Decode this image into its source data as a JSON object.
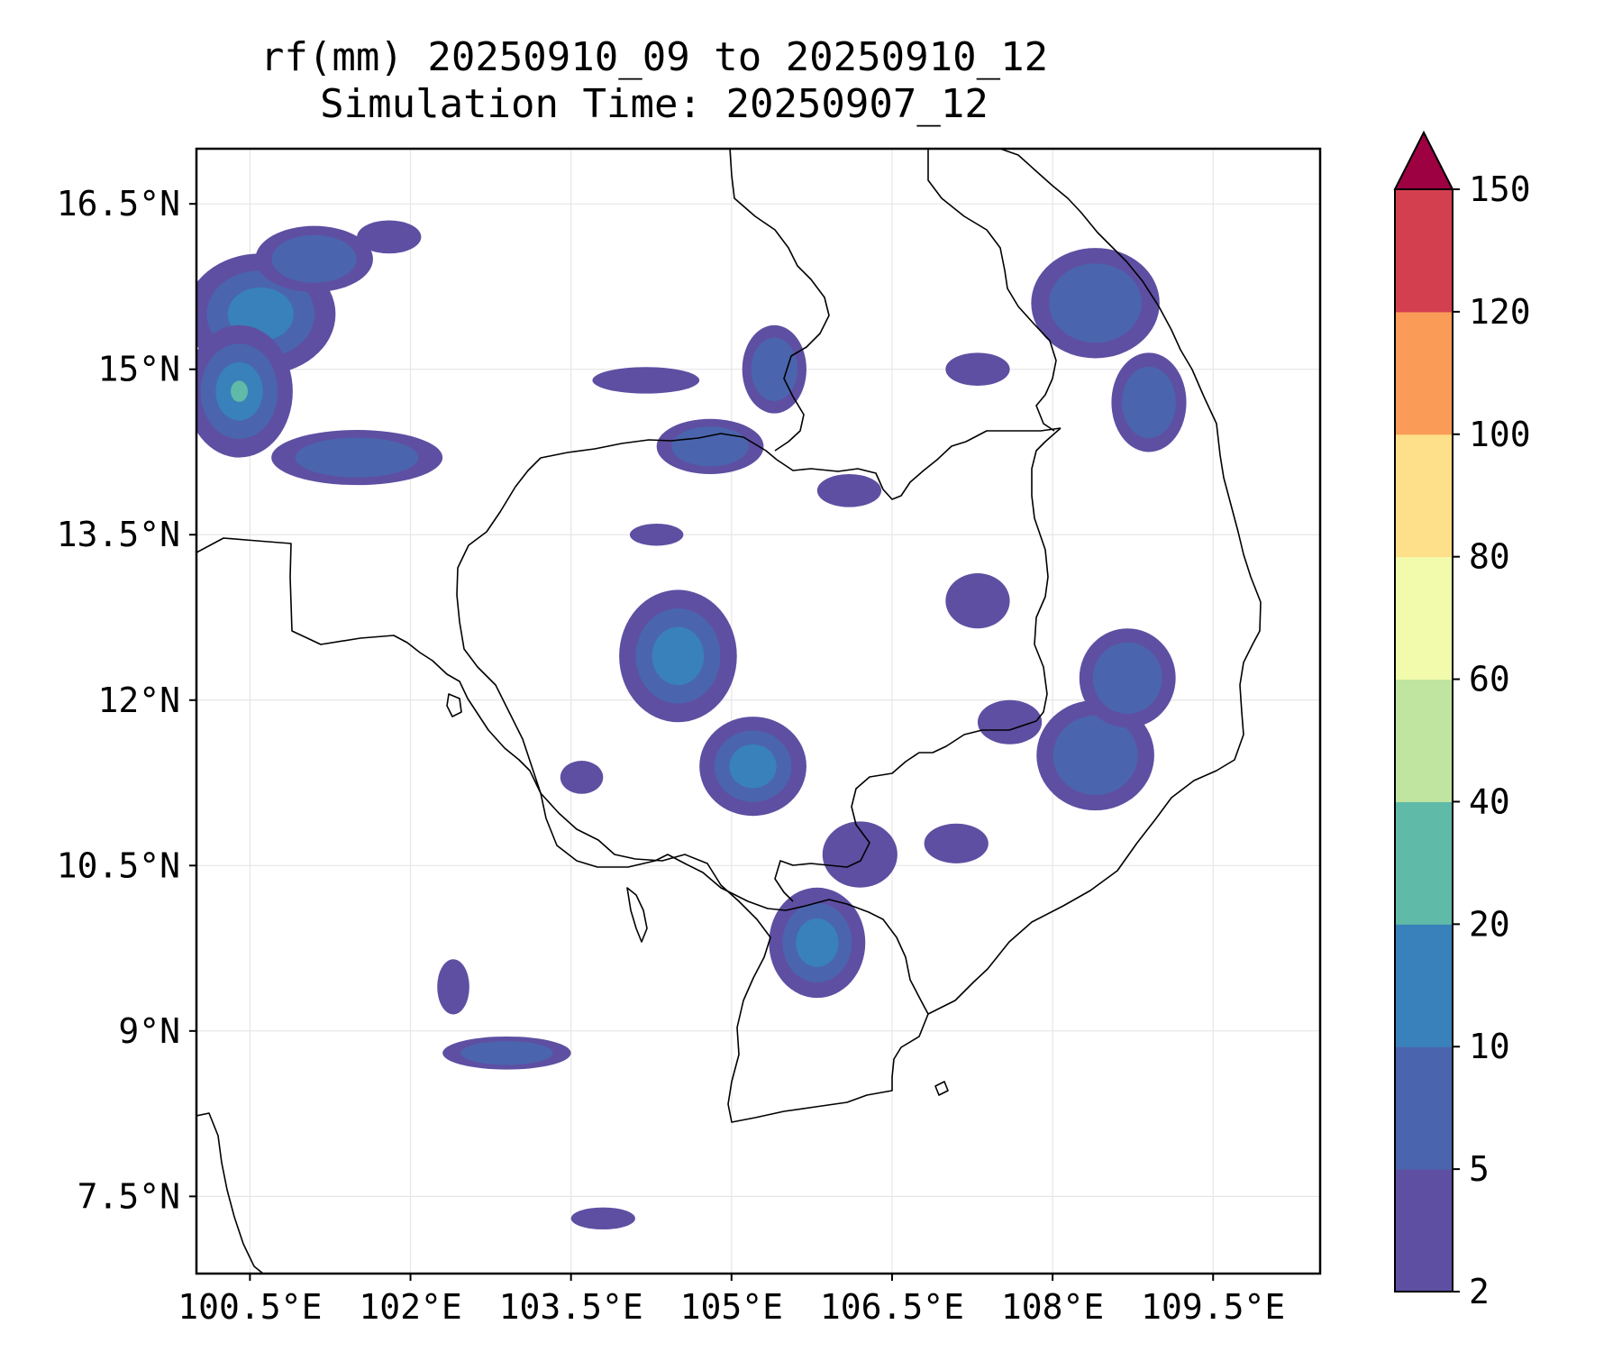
{
  "title": {
    "line1": "rf(mm) 20250910_09 to 20250910_12",
    "line2": "Simulation Time: 20250907_12"
  },
  "map": {
    "lon_range": [
      100.0,
      110.5
    ],
    "lat_range": [
      6.8,
      17.0
    ],
    "lon_ticks": [
      {
        "value": 100.5,
        "label": "100.5°E"
      },
      {
        "value": 102.0,
        "label": "102°E"
      },
      {
        "value": 103.5,
        "label": "103.5°E"
      },
      {
        "value": 105.0,
        "label": "105°E"
      },
      {
        "value": 106.5,
        "label": "106.5°E"
      },
      {
        "value": 108.0,
        "label": "108°E"
      },
      {
        "value": 109.5,
        "label": "109.5°E"
      }
    ],
    "lat_ticks": [
      {
        "value": 16.5,
        "label": "16.5°N"
      },
      {
        "value": 15.0,
        "label": "15°N"
      },
      {
        "value": 13.5,
        "label": "13.5°N"
      },
      {
        "value": 12.0,
        "label": "12°N"
      },
      {
        "value": 10.5,
        "label": "10.5°N"
      },
      {
        "value": 9.0,
        "label": "9°N"
      },
      {
        "value": 7.5,
        "label": "7.5°N"
      }
    ],
    "gridlines": true,
    "coastline_color": "#000000",
    "gridline_color": "#e6e6e6"
  },
  "colorbar": {
    "levels": [
      {
        "value": 2,
        "label": "2"
      },
      {
        "value": 5,
        "label": "5"
      },
      {
        "value": 10,
        "label": "10"
      },
      {
        "value": 20,
        "label": "20"
      },
      {
        "value": 40,
        "label": "40"
      },
      {
        "value": 60,
        "label": "60"
      },
      {
        "value": 80,
        "label": "80"
      },
      {
        "value": 100,
        "label": "100"
      },
      {
        "value": 120,
        "label": "120"
      },
      {
        "value": 150,
        "label": "150"
      }
    ],
    "colors": [
      "#5e4fa2",
      "#4a65ae",
      "#3981ba",
      "#5fbaa8",
      "#bfe5a0",
      "#f2faab",
      "#fde089",
      "#fa9b58",
      "#d43f4f"
    ],
    "extend_color": "#9e0142",
    "extend": "max"
  },
  "rain_areas": [
    {
      "lon": 100.6,
      "lat": 15.5,
      "rx": 0.7,
      "ry": 0.55,
      "level": 2
    },
    {
      "lon": 100.4,
      "lat": 14.8,
      "rx": 0.5,
      "ry": 0.6,
      "level": 3
    },
    {
      "lon": 101.5,
      "lat": 14.2,
      "rx": 0.8,
      "ry": 0.25,
      "level": 1
    },
    {
      "lon": 101.1,
      "lat": 16.0,
      "rx": 0.55,
      "ry": 0.3,
      "level": 1
    },
    {
      "lon": 108.4,
      "lat": 15.6,
      "rx": 0.6,
      "ry": 0.5,
      "level": 1
    },
    {
      "lon": 108.9,
      "lat": 14.7,
      "rx": 0.35,
      "ry": 0.45,
      "level": 1
    },
    {
      "lon": 104.5,
      "lat": 12.4,
      "rx": 0.55,
      "ry": 0.6,
      "level": 2
    },
    {
      "lon": 105.2,
      "lat": 11.4,
      "rx": 0.5,
      "ry": 0.45,
      "level": 2
    },
    {
      "lon": 108.4,
      "lat": 11.5,
      "rx": 0.55,
      "ry": 0.5,
      "level": 1
    },
    {
      "lon": 108.7,
      "lat": 12.2,
      "rx": 0.45,
      "ry": 0.45,
      "level": 1
    },
    {
      "lon": 105.8,
      "lat": 9.8,
      "rx": 0.45,
      "ry": 0.5,
      "level": 2
    },
    {
      "lon": 102.9,
      "lat": 8.8,
      "rx": 0.6,
      "ry": 0.15,
      "level": 1
    },
    {
      "lon": 104.8,
      "lat": 14.3,
      "rx": 0.5,
      "ry": 0.25,
      "level": 1
    },
    {
      "lon": 105.4,
      "lat": 15.0,
      "rx": 0.3,
      "ry": 0.4,
      "level": 1
    },
    {
      "lon": 106.1,
      "lat": 13.9,
      "rx": 0.3,
      "ry": 0.15,
      "level": 0
    },
    {
      "lon": 104.2,
      "lat": 14.9,
      "rx": 0.5,
      "ry": 0.12,
      "level": 0
    },
    {
      "lon": 107.3,
      "lat": 12.9,
      "rx": 0.3,
      "ry": 0.25,
      "level": 0
    },
    {
      "lon": 107.6,
      "lat": 11.8,
      "rx": 0.3,
      "ry": 0.2,
      "level": 0
    },
    {
      "lon": 107.1,
      "lat": 10.7,
      "rx": 0.3,
      "ry": 0.18,
      "level": 0
    },
    {
      "lon": 106.2,
      "lat": 10.6,
      "rx": 0.35,
      "ry": 0.3,
      "level": 0
    },
    {
      "lon": 101.8,
      "lat": 16.2,
      "rx": 0.3,
      "ry": 0.15,
      "level": 0
    },
    {
      "lon": 102.4,
      "lat": 9.4,
      "rx": 0.15,
      "ry": 0.25,
      "level": 0
    },
    {
      "lon": 103.8,
      "lat": 7.3,
      "rx": 0.3,
      "ry": 0.1,
      "level": 0
    },
    {
      "lon": 107.3,
      "lat": 15.0,
      "rx": 0.3,
      "ry": 0.15,
      "level": 0
    },
    {
      "lon": 103.6,
      "lat": 11.3,
      "rx": 0.2,
      "ry": 0.15,
      "level": 0
    },
    {
      "lon": 104.3,
      "lat": 13.5,
      "rx": 0.25,
      "ry": 0.1,
      "level": 0
    }
  ]
}
